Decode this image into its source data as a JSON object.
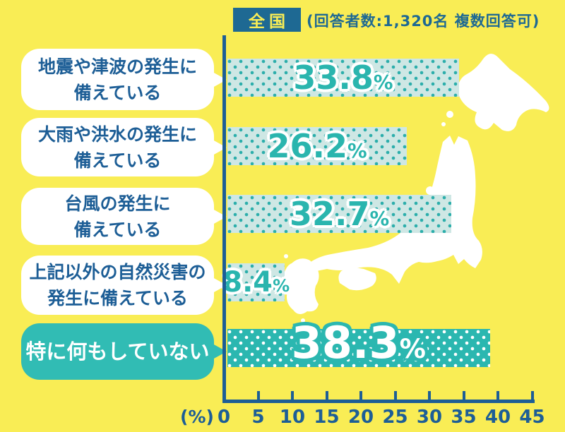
{
  "header": {
    "region_label": "全国",
    "respondents_note": "(回答者数:1,320名 複数回答可)"
  },
  "axis": {
    "unit_label": "(%)",
    "ticks": [
      "0",
      "5",
      "10",
      "15",
      "20",
      "25",
      "30",
      "35",
      "40",
      "45"
    ]
  },
  "chart_data": {
    "type": "bar",
    "orientation": "horizontal",
    "title": "全国",
    "subtitle": "(回答者数:1,320名 複数回答可)",
    "categories": [
      "地震や津波の発生に備えている",
      "大雨や洪水の発生に備えている",
      "台風の発生に備えている",
      "上記以外の自然災害の発生に備えている",
      "特に何もしていない"
    ],
    "values": [
      33.8,
      26.2,
      32.7,
      8.4,
      38.3
    ],
    "unit": "%",
    "xlabel": "(%)",
    "xlim": [
      0,
      45
    ],
    "x_ticks": [
      0,
      5,
      10,
      15,
      20,
      25,
      30,
      35,
      40,
      45
    ],
    "grid": false,
    "legend": false,
    "highlight_index": 4
  },
  "bars": [
    {
      "label_line1": "地震や津波の発生に",
      "label_line2": "備えている",
      "value": 33.8,
      "value_text": "33.8",
      "percent_sign": "%"
    },
    {
      "label_line1": "大雨や洪水の発生に",
      "label_line2": "備えている",
      "value": 26.2,
      "value_text": "26.2",
      "percent_sign": "%"
    },
    {
      "label_line1": "台風の発生に",
      "label_line2": "備えている",
      "value": 32.7,
      "value_text": "32.7",
      "percent_sign": "%"
    },
    {
      "label_line1": "上記以外の自然災害の",
      "label_line2": "発生に備えている",
      "value": 8.4,
      "value_text": "8.4",
      "percent_sign": "%"
    },
    {
      "label_line1": "特に何もしていない",
      "label_line2": "",
      "value": 38.3,
      "value_text": "38.3",
      "percent_sign": "%"
    }
  ],
  "colors": {
    "background": "#F9ED55",
    "axis_and_text_blue": "#1D5E96",
    "header_box_blue": "#1E6993",
    "bar_light_fill": "#CEE7E4",
    "bar_light_dots": "#2CAEAB",
    "bar_solid_fill": "#2BB7B0",
    "value_teal": "#2AB5AE",
    "highlight_bubble_teal": "#31BCB4",
    "map_white": "#FFFFFF"
  }
}
